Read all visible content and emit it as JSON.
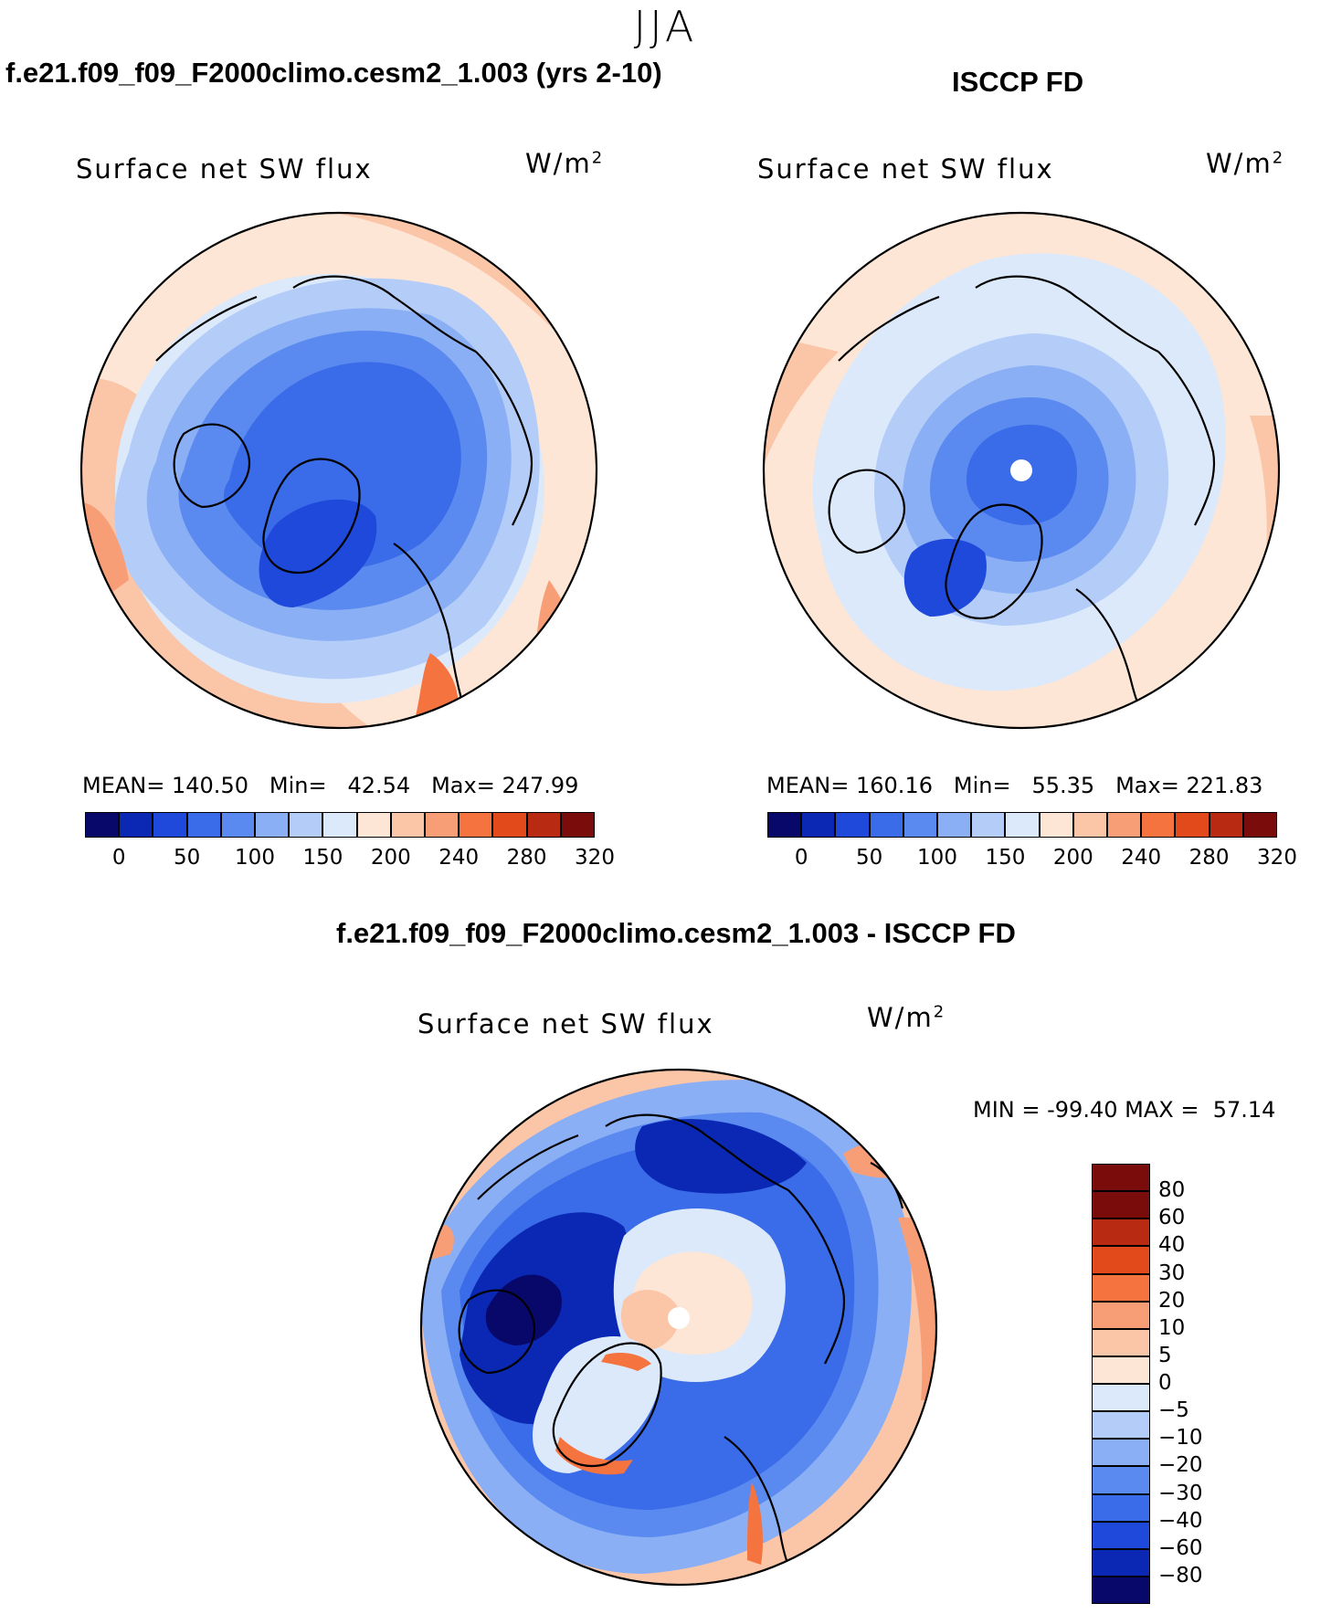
{
  "season": "JJA",
  "panels": [
    {
      "case_title": "f.e21.f09_f09_F2000climo.cesm2_1.003 (yrs 2-10)",
      "variable": "Surface net SW flux",
      "units_base": "W/m",
      "units_exp": "2",
      "stats": {
        "mean_label": "MEAN=",
        "mean": "140.50",
        "min_label": "Min=",
        "min": "42.54",
        "max_label": "Max=",
        "max": "247.99"
      },
      "pattern": "model"
    },
    {
      "case_title": "ISCCP FD",
      "variable": "Surface net SW flux",
      "units_base": "W/m",
      "units_exp": "2",
      "stats": {
        "mean_label": "MEAN=",
        "mean": "160.16",
        "min_label": "Min=",
        "min": "55.35",
        "max_label": "Max=",
        "max": "221.83"
      },
      "pattern": "obs"
    }
  ],
  "abs_colorbar": {
    "colors": [
      "#08086b",
      "#0a28b4",
      "#1f49da",
      "#3a6be8",
      "#5a8aef",
      "#8aaff5",
      "#b4cdf8",
      "#dbe9fb",
      "#fde6d6",
      "#fbc5a8",
      "#f89e76",
      "#f4733f",
      "#e24a1c",
      "#b82a12",
      "#7a0c0c"
    ],
    "labels": [
      "0",
      "50",
      "100",
      "150",
      "200",
      "240",
      "280",
      "320"
    ]
  },
  "diff": {
    "title": "f.e21.f09_f09_F2000climo.cesm2_1.003 - ISCCP FD",
    "variable": "Surface net SW flux",
    "units_base": "W/m",
    "units_exp": "2",
    "min_label": "MIN =",
    "min": "-99.40",
    "max_label": "MAX =",
    "max": "57.14",
    "colorbar": {
      "colors": [
        "#7a0c0c",
        "#b82a12",
        "#e24a1c",
        "#f4733f",
        "#f89e76",
        "#fbc5a8",
        "#fde6d6",
        "#dbe9fb",
        "#b4cdf8",
        "#8aaff5",
        "#5a8aef",
        "#3a6be8",
        "#1f49da",
        "#0a28b4",
        "#08086b"
      ],
      "labels": [
        "80",
        "60",
        "40",
        "30",
        "20",
        "10",
        "5",
        "0",
        "−5",
        "−10",
        "−20",
        "−30",
        "−40",
        "−60",
        "−80"
      ]
    }
  }
}
